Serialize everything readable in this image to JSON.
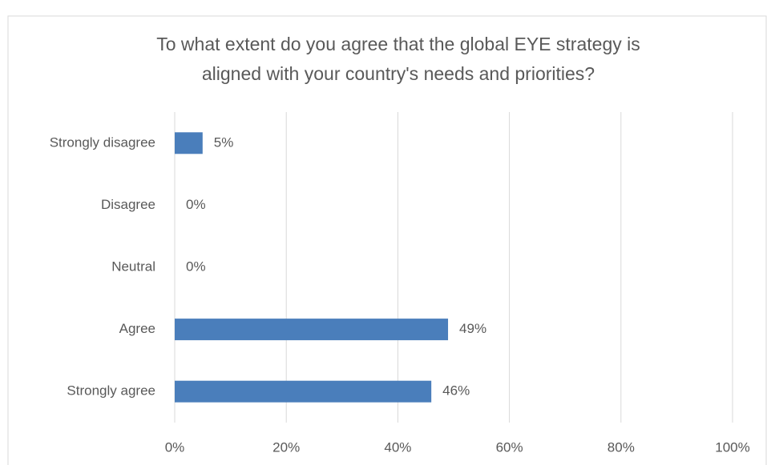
{
  "chart_data": {
    "type": "bar",
    "orientation": "horizontal",
    "title": [
      "To what extent do you agree that the global EYE strategy is",
      "aligned with your country's needs and priorities?"
    ],
    "categories": [
      "Strongly disagree",
      "Disagree",
      "Neutral",
      "Agree",
      "Strongly agree"
    ],
    "values": [
      5,
      0,
      0,
      49,
      46
    ],
    "value_labels": [
      "5%",
      "0%",
      "0%",
      "49%",
      "46%"
    ],
    "color": "#4a7ebb",
    "xlim": [
      0,
      100
    ],
    "xticks": [
      {
        "value": 0,
        "label": "0%"
      },
      {
        "value": 20,
        "label": "20%"
      },
      {
        "value": 40,
        "label": "40%"
      },
      {
        "value": 60,
        "label": "60%"
      },
      {
        "value": 80,
        "label": "80%"
      },
      {
        "value": 100,
        "label": "100%"
      }
    ],
    "grid": true
  }
}
